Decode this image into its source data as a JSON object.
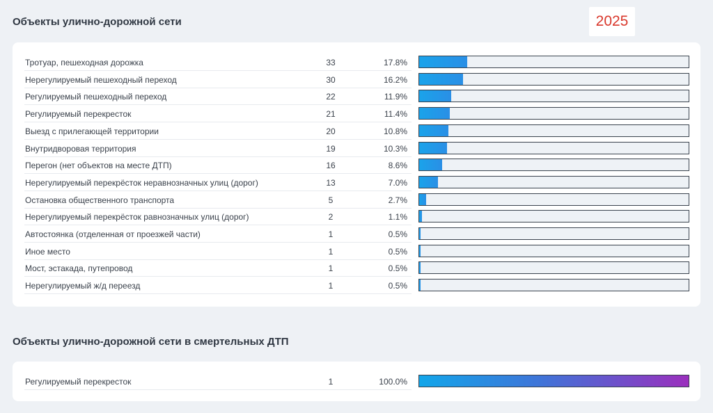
{
  "year": "2025",
  "chart_data": [
    {
      "type": "bar",
      "orientation": "horizontal",
      "title": "Объекты улично-дорожной сети",
      "categories": [
        "Тротуар, пешеходная дорожка",
        "Нерегулируемый пешеходный переход",
        "Регулируемый пешеходный переход",
        "Регулируемый перекресток",
        "Выезд с прилегающей территории",
        "Внутридворовая территория",
        "Перегон (нет объектов на месте ДТП)",
        "Нерегулируемый перекрёсток неравнозначных улиц (дорог)",
        "Остановка общественного транспорта",
        "Нерегулируемый перекрёсток равнозначных улиц (дорог)",
        "Автостоянка (отделенная от проезжей части)",
        "Иное место",
        "Мост, эстакада, путепровод",
        "Нерегулируемый ж/д переезд"
      ],
      "values": [
        33,
        30,
        22,
        21,
        20,
        19,
        16,
        13,
        5,
        2,
        1,
        1,
        1,
        1
      ],
      "percent_labels": [
        "17.8%",
        "16.2%",
        "11.9%",
        "11.4%",
        "10.8%",
        "10.3%",
        "8.6%",
        "7.0%",
        "2.7%",
        "1.1%",
        "0.5%",
        "0.5%",
        "0.5%",
        "0.5%"
      ],
      "xlim": [
        0,
        185
      ],
      "bar_color": "#1aa3ea"
    },
    {
      "type": "bar",
      "orientation": "horizontal",
      "title": "Объекты улично-дорожной сети в смертельных ДТП",
      "categories": [
        "Регулируемый перекресток"
      ],
      "values": [
        1
      ],
      "percent_labels": [
        "100.0%"
      ],
      "xlim": [
        0,
        1
      ],
      "bar_color": [
        "#12a6ea",
        "#9b2fbd"
      ]
    }
  ]
}
